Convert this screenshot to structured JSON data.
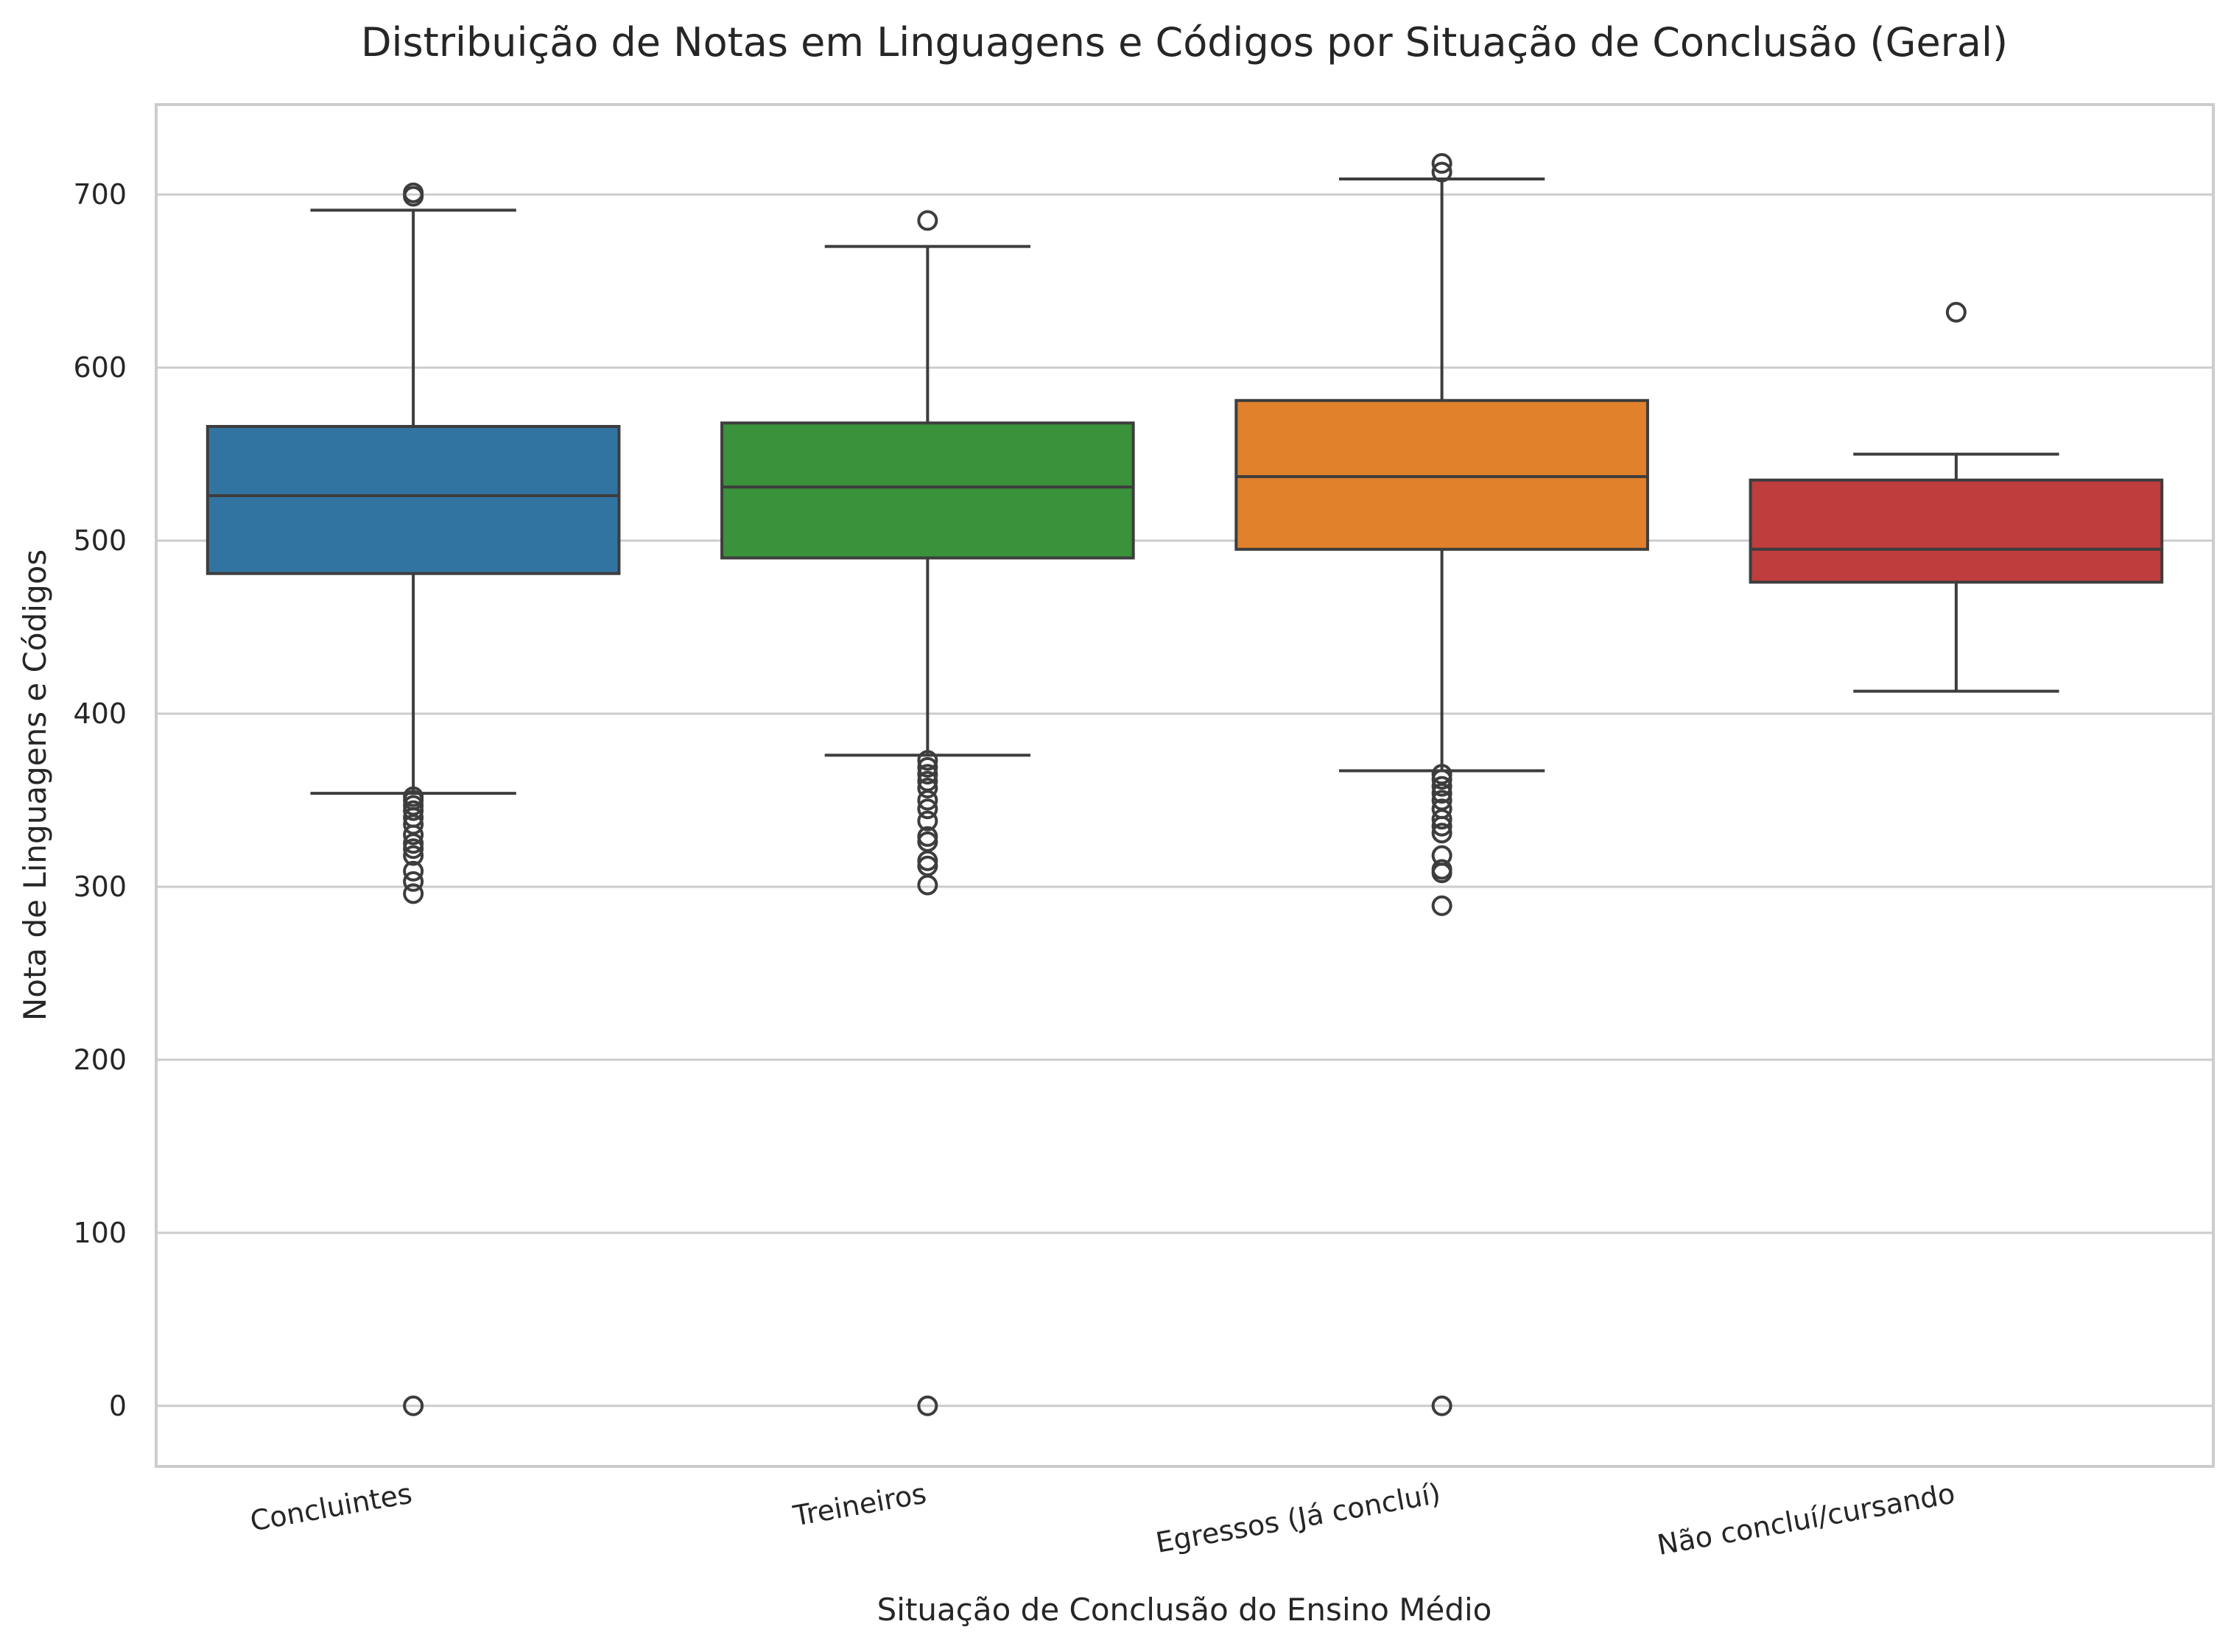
{
  "chart_data": {
    "type": "box",
    "title": "Distribuição de Notas em Linguagens e Códigos por Situação de Conclusão (Geral)",
    "xlabel": "Situação de Conclusão do Ensino Médio",
    "ylabel": "Nota de Linguagens e Códigos",
    "ylim": [
      -35,
      752
    ],
    "yticks": [
      0,
      100,
      200,
      300,
      400,
      500,
      600,
      700
    ],
    "grid": true,
    "categories": [
      "Concluintes",
      "Treineiros",
      "Egressos (Já concluí)",
      "Não concluí/cursando"
    ],
    "colors": [
      "#3274a1",
      "#3a923a",
      "#e1812c",
      "#c03d3e"
    ],
    "boxes": [
      {
        "category": "Concluintes",
        "whisker_low": 354,
        "q1": 481,
        "median": 526,
        "q3": 566,
        "whisker_high": 691,
        "outliers": [
          0,
          296,
          303,
          309,
          318,
          322,
          325,
          330,
          336,
          340,
          344,
          347,
          350,
          352,
          699,
          701
        ]
      },
      {
        "category": "Treineiros",
        "whisker_low": 376,
        "q1": 490,
        "median": 531,
        "q3": 568,
        "whisker_high": 670,
        "outliers": [
          0,
          301,
          312,
          315,
          326,
          329,
          338,
          345,
          350,
          357,
          361,
          365,
          369,
          373,
          685
        ]
      },
      {
        "category": "Egressos (Já concluí)",
        "whisker_low": 367,
        "q1": 495,
        "median": 537,
        "q3": 581,
        "whisker_high": 709,
        "outliers": [
          0,
          289,
          308,
          310,
          318,
          331,
          335,
          339,
          345,
          350,
          354,
          358,
          362,
          365,
          713,
          718
        ]
      },
      {
        "category": "Não concluí/cursando",
        "whisker_low": 413,
        "q1": 476,
        "median": 495,
        "q3": 535,
        "whisker_high": 550,
        "outliers": [
          632
        ]
      }
    ]
  }
}
